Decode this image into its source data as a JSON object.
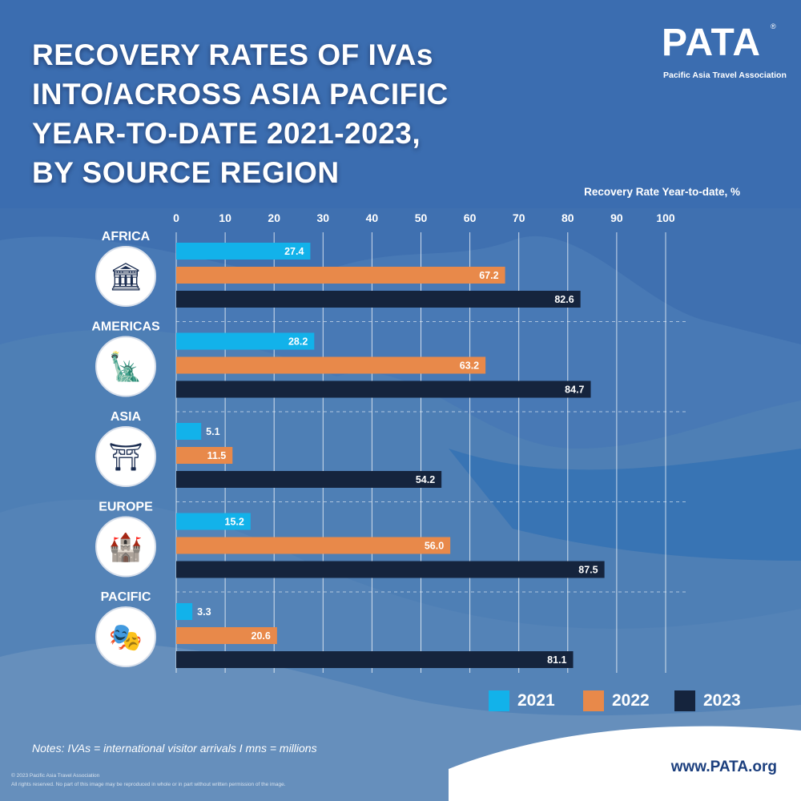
{
  "title_lines": [
    "RECOVERY RATES OF IVAs",
    "INTO/ACROSS ASIA PACIFIC",
    "YEAR-TO-DATE 2021-2023,",
    "BY SOURCE REGION"
  ],
  "logo": {
    "text": "PATA",
    "registered": "®",
    "subtitle": "Pacific Asia Travel Association"
  },
  "colors": {
    "s2021": "#12b2ea",
    "s2022": "#e8894a",
    "s2023": "#15243d",
    "background": "#3f70b0"
  },
  "chart_data": {
    "type": "bar",
    "orientation": "horizontal",
    "title": "RECOVERY RATES OF IVAs INTO/ACROSS ASIA PACIFIC YEAR-TO-DATE 2021-2023, BY SOURCE REGION",
    "xlabel": "Recovery Rate Year-to-date, %",
    "ylabel": "",
    "xlim": [
      0,
      100
    ],
    "ticks": [
      "0",
      "10",
      "20",
      "30",
      "40",
      "50",
      "60",
      "70",
      "80",
      "90",
      "100"
    ],
    "categories": [
      "AFRICA",
      "AMERICAS",
      "ASIA",
      "EUROPE",
      "PACIFIC"
    ],
    "category_icons": [
      "pharaoh-mask-icon",
      "statue-of-liberty-icon",
      "pagoda-icon",
      "leaning-tower-icon",
      "opera-house-icon"
    ],
    "series": [
      {
        "name": "2021",
        "values": [
          27.4,
          28.2,
          5.1,
          15.2,
          3.3
        ],
        "labels": [
          "27.4",
          "28.2",
          "5.1",
          "15.2",
          "3.3"
        ]
      },
      {
        "name": "2022",
        "values": [
          67.2,
          63.2,
          11.5,
          56.0,
          20.6
        ],
        "labels": [
          "67.2",
          "63.2",
          "11.5",
          "56.0",
          "20.6"
        ]
      },
      {
        "name": "2023",
        "values": [
          82.6,
          84.7,
          54.2,
          87.5,
          81.1
        ],
        "labels": [
          "82.6",
          "84.7",
          "54.2",
          "87.5",
          "81.1"
        ]
      }
    ],
    "legend_position": "bottom-right",
    "grid": true
  },
  "notes": "Notes: IVAs = international visitor arrivals I mns = millions",
  "copyright_lines": [
    "© 2023 Pacific Asia Travel Association",
    "All rights reserved. No part of this image may be reproduced in whole or in part without written permission of the image."
  ],
  "website": "www.PATA.org"
}
